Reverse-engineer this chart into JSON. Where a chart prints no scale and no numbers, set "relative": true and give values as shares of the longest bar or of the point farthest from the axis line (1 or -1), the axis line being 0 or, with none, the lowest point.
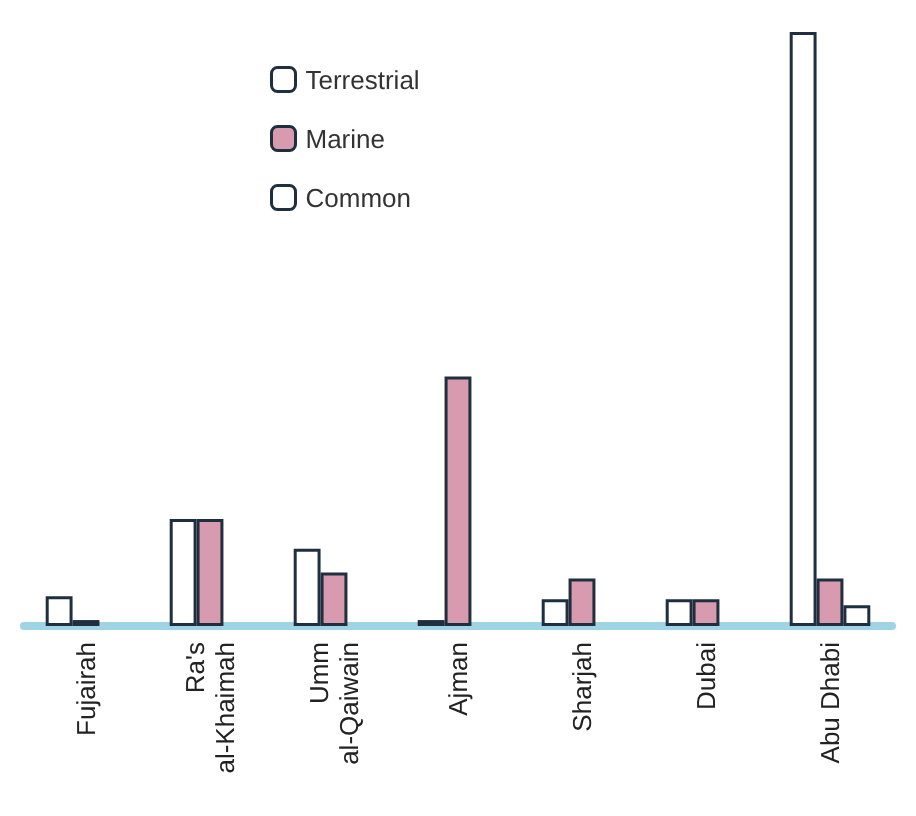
{
  "chart_data": {
    "type": "bar",
    "relative": true,
    "legend": "top",
    "categories": [
      "Fujairah",
      "Ra's\nal-Khaimah",
      "Umm\nal-Qaiwain",
      "Ajman",
      "Sharjah",
      "Dubai",
      "Abu Dhabi"
    ],
    "series": [
      {
        "name": "Terrestrial",
        "color": "#ffffff",
        "values": [
          0.05,
          0.18,
          0.13,
          0.01,
          0.045,
          0.045,
          1
        ]
      },
      {
        "name": "Marine",
        "color": "#d89aae",
        "values": [
          0.01,
          0.18,
          0.09,
          0.42,
          0.08,
          0.045,
          0.08
        ]
      },
      {
        "name": "Common",
        "color": "#ffffff",
        "values": [
          null,
          null,
          null,
          null,
          null,
          null,
          0.035
        ]
      }
    ]
  }
}
